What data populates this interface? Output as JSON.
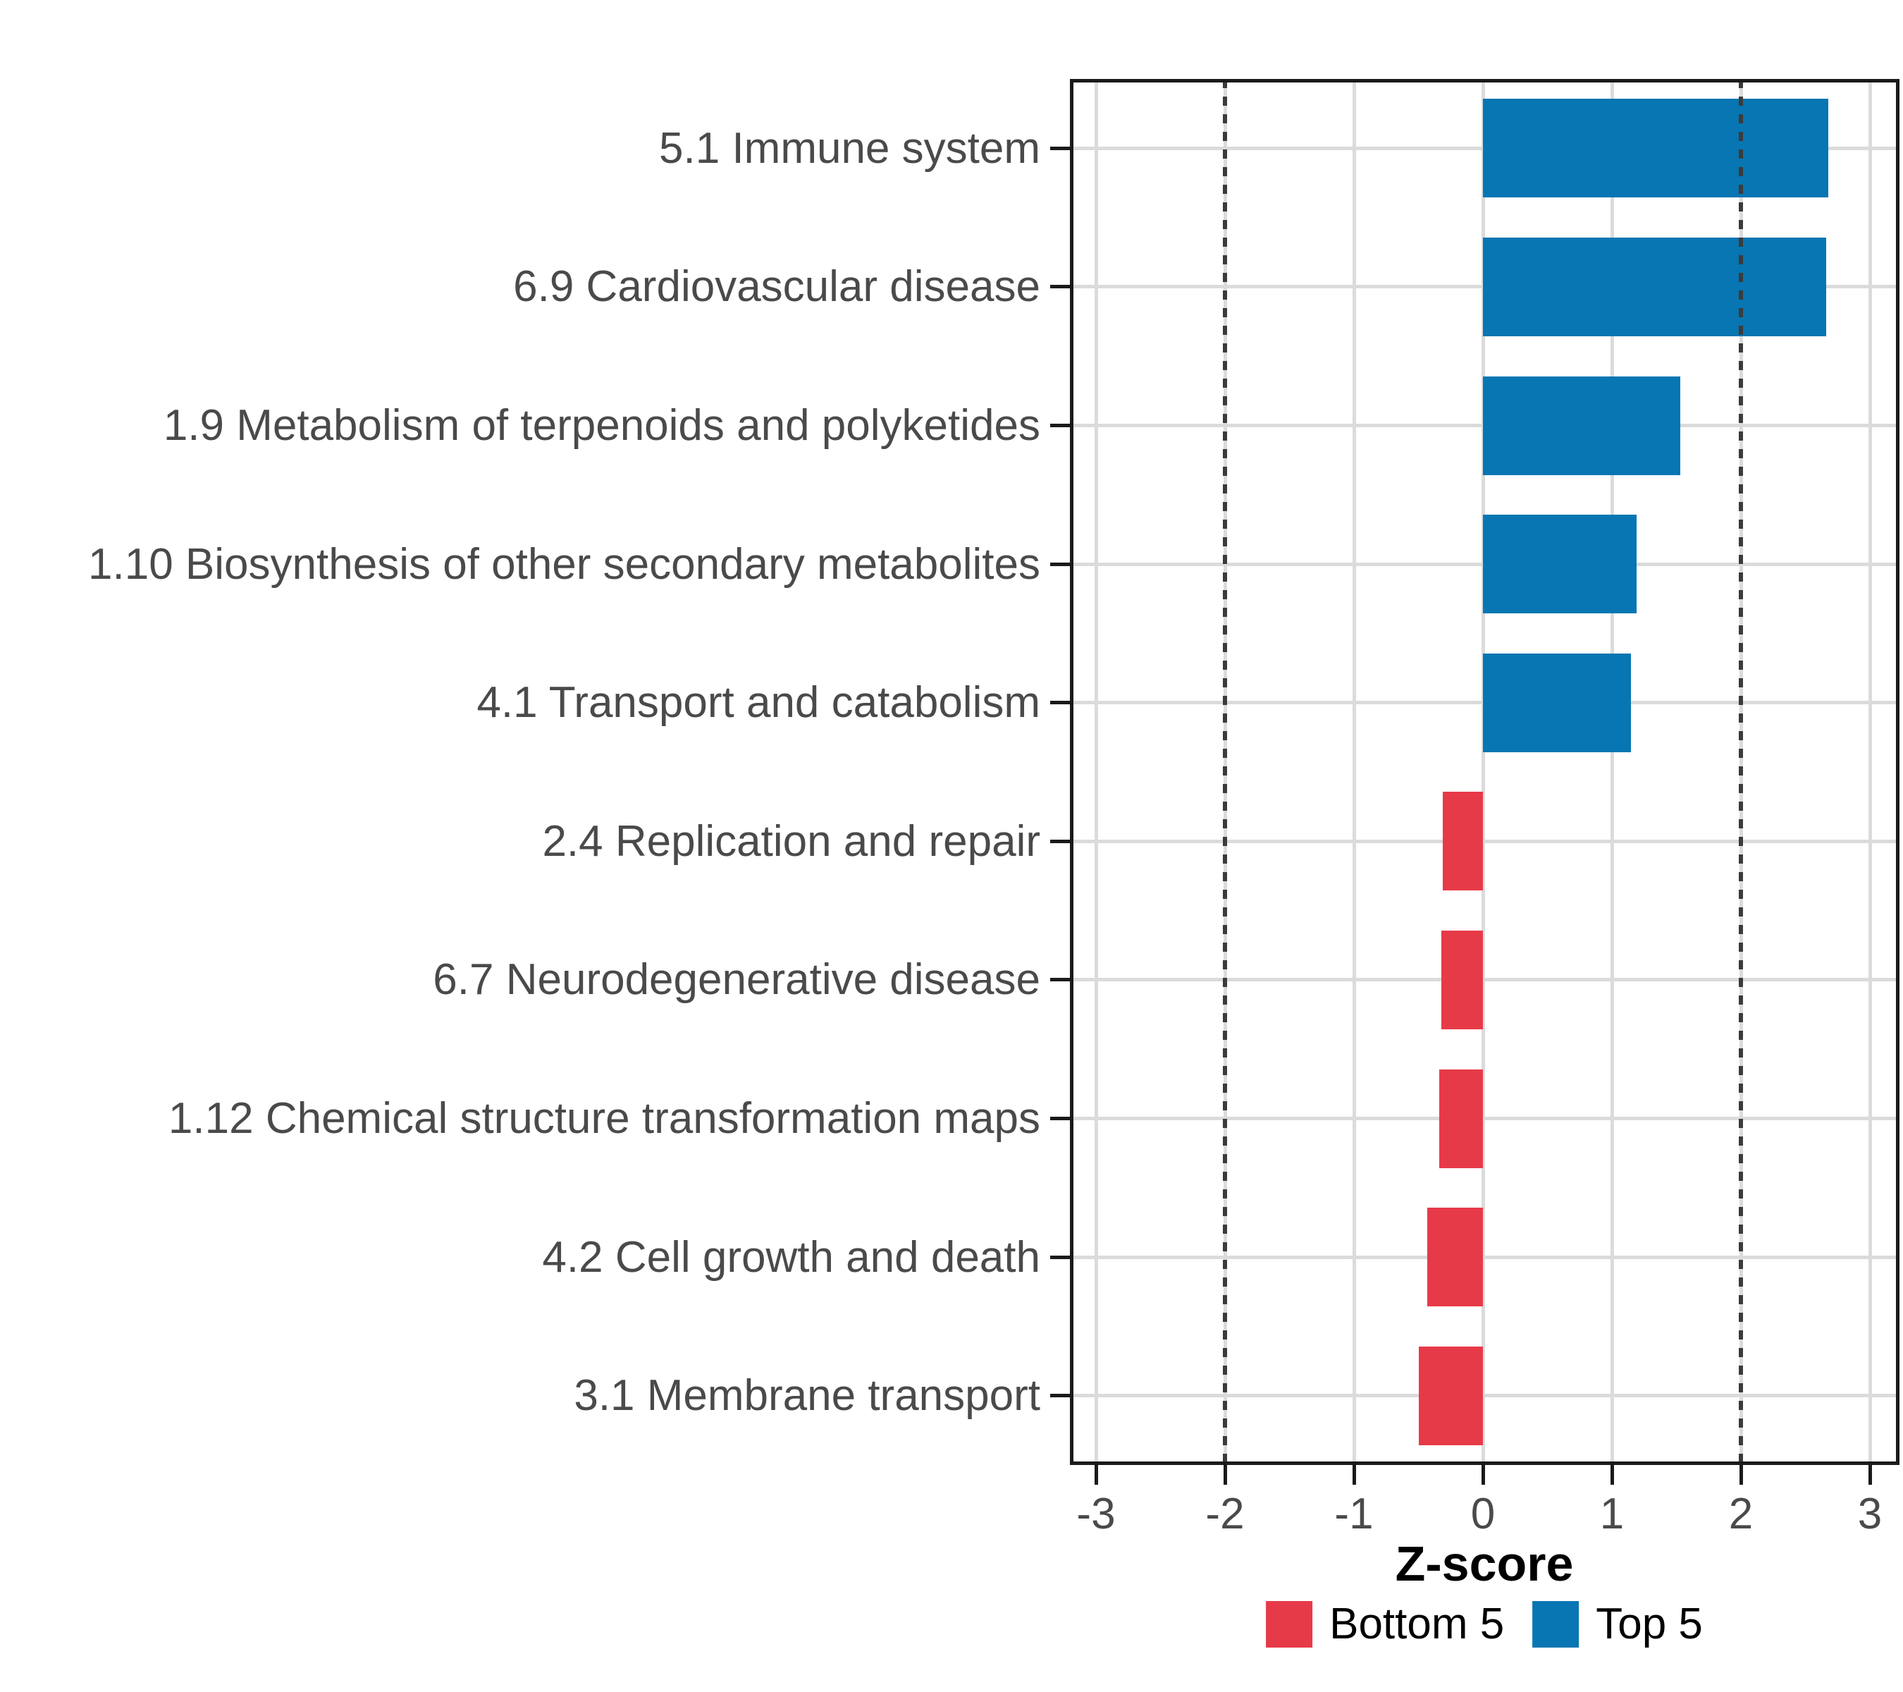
{
  "chart_data": {
    "type": "bar",
    "orientation": "horizontal",
    "title": "",
    "xlabel": "Z-score",
    "ylabel": "",
    "xlim": [
      -3.2,
      3.23
    ],
    "x_ticks": [
      -3,
      -2,
      -1,
      0,
      1,
      2,
      3
    ],
    "x_tick_labels": [
      "-3",
      "-2",
      "-1",
      "0",
      "1",
      "2",
      "3"
    ],
    "reference_lines": [
      -2,
      2
    ],
    "grid": "major x and y, light gray",
    "legend_position": "bottom",
    "categories": [
      "5.1 Immune system",
      "6.9 Cardiovascular disease",
      "1.9 Metabolism of terpenoids and polyketides",
      "1.10 Biosynthesis of other secondary metabolites",
      "4.1 Transport and catabolism",
      "2.4 Replication and repair",
      "6.7 Neurodegenerative disease",
      "1.12 Chemical structure transformation maps",
      "4.2 Cell growth and death",
      "3.1 Membrane transport"
    ],
    "values": [
      2.68,
      2.66,
      1.53,
      1.19,
      1.15,
      -0.31,
      -0.32,
      -0.34,
      -0.43,
      -0.5
    ],
    "groups": [
      "Top 5",
      "Top 5",
      "Top 5",
      "Top 5",
      "Top 5",
      "Bottom 5",
      "Bottom 5",
      "Bottom 5",
      "Bottom 5",
      "Bottom 5"
    ],
    "colors": {
      "top5": "#0776b2",
      "bottom5": "#e73a48"
    },
    "legend": {
      "items": [
        {
          "label": "Bottom 5",
          "color": "#e73a48"
        },
        {
          "label": "Top 5",
          "color": "#0776b2"
        }
      ]
    }
  }
}
